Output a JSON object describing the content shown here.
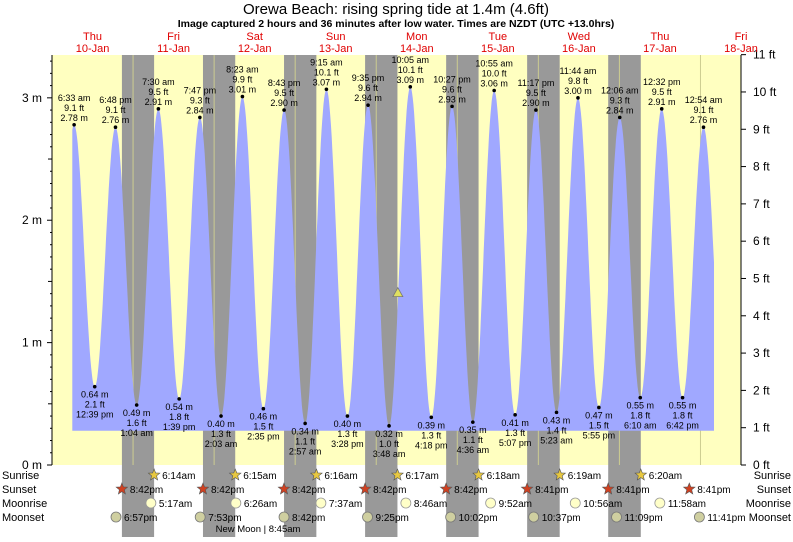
{
  "title": "Orewa Beach: rising  spring tide at 1.4m (4.6ft)",
  "subtitle": "Image captured 2 hours and 36 minutes after low water. Times are NZDT (UTC +13.0hrs)",
  "colors": {
    "day_bg": "#ffffc0",
    "night_bg": "#999999",
    "tide_fill": "#a0a8ff",
    "day_label": "#e00000",
    "marker": "#e0e060"
  },
  "chart_data": {
    "type": "area",
    "title": "Orewa Beach: rising  spring tide at 1.4m (4.6ft)",
    "y_left_label": "m",
    "y_right_label": "ft",
    "ylim_m": [
      0,
      3.35
    ],
    "y_ticks_m": [
      "0 m",
      "1 m",
      "2 m",
      "3 m"
    ],
    "y_ticks_ft": [
      "0 ft",
      "1 ft",
      "2 ft",
      "3 ft",
      "4 ft",
      "5 ft",
      "6 ft",
      "7 ft",
      "8 ft",
      "9 ft",
      "10 ft",
      "11 ft"
    ],
    "x_range_hours": [
      0,
      204
    ],
    "days": [
      {
        "name": "Thu",
        "date": "10-Jan"
      },
      {
        "name": "Fri",
        "date": "11-Jan"
      },
      {
        "name": "Sat",
        "date": "12-Jan"
      },
      {
        "name": "Sun",
        "date": "13-Jan"
      },
      {
        "name": "Mon",
        "date": "14-Jan"
      },
      {
        "name": "Tue",
        "date": "15-Jan"
      },
      {
        "name": "Wed",
        "date": "16-Jan"
      },
      {
        "name": "Thu",
        "date": "17-Jan"
      },
      {
        "name": "Fri",
        "date": "18-Jan"
      }
    ],
    "nights": [
      [
        20.7,
        30.23
      ],
      [
        44.7,
        54.25
      ],
      [
        68.7,
        78.27
      ],
      [
        92.7,
        102.28
      ],
      [
        116.7,
        126.3
      ],
      [
        140.68,
        150.32
      ],
      [
        164.68,
        174.33
      ]
    ],
    "tides": [
      {
        "t": 6.55,
        "h": 2.78,
        "time": "6:33 am",
        "ft": "9.1 ft",
        "m": "2.78 m",
        "type": "high"
      },
      {
        "t": 12.65,
        "h": 0.64,
        "time": "12:39 pm",
        "ft": "2.1 ft",
        "m": "0.64 m",
        "type": "low"
      },
      {
        "t": 18.8,
        "h": 2.76,
        "time": "6:48 pm",
        "ft": "9.1 ft",
        "m": "2.76 m",
        "type": "high"
      },
      {
        "t": 25.07,
        "h": 0.49,
        "time": "1:04 am",
        "ft": "1.6 ft",
        "m": "0.49 m",
        "type": "low"
      },
      {
        "t": 31.5,
        "h": 2.91,
        "time": "7:30 am",
        "ft": "9.5 ft",
        "m": "2.91 m",
        "type": "high"
      },
      {
        "t": 37.65,
        "h": 0.54,
        "time": "1:39 pm",
        "ft": "1.8 ft",
        "m": "0.54 m",
        "type": "low"
      },
      {
        "t": 43.78,
        "h": 2.84,
        "time": "7:47 pm",
        "ft": "9.3 ft",
        "m": "2.84 m",
        "type": "high"
      },
      {
        "t": 50.05,
        "h": 0.4,
        "time": "2:03 am",
        "ft": "1.3 ft",
        "m": "0.40 m",
        "type": "low"
      },
      {
        "t": 56.38,
        "h": 3.01,
        "time": "8:23 am",
        "ft": "9.9 ft",
        "m": "3.01 m",
        "type": "high"
      },
      {
        "t": 62.58,
        "h": 0.46,
        "time": "2:35 pm",
        "ft": "1.5 ft",
        "m": "0.46 m",
        "type": "low"
      },
      {
        "t": 68.72,
        "h": 2.9,
        "time": "8:43 pm",
        "ft": "9.5 ft",
        "m": "2.90 m",
        "type": "high"
      },
      {
        "t": 74.95,
        "h": 0.34,
        "time": "2:57 am",
        "ft": "1.1 ft",
        "m": "0.34 m",
        "type": "low"
      },
      {
        "t": 81.25,
        "h": 3.07,
        "time": "9:15 am",
        "ft": "10.1 ft",
        "m": "3.07 m",
        "type": "high"
      },
      {
        "t": 87.47,
        "h": 0.4,
        "time": "3:28 pm",
        "ft": "1.3 ft",
        "m": "0.40 m",
        "type": "low"
      },
      {
        "t": 93.58,
        "h": 2.94,
        "time": "9:35 pm",
        "ft": "9.6 ft",
        "m": "2.94 m",
        "type": "high"
      },
      {
        "t": 99.8,
        "h": 0.32,
        "time": "3:48 am",
        "ft": "1.0 ft",
        "m": "0.32 m",
        "type": "low"
      },
      {
        "t": 106.08,
        "h": 3.09,
        "time": "10:05 am",
        "ft": "10.1 ft",
        "m": "3.09 m",
        "type": "high"
      },
      {
        "t": 112.3,
        "h": 0.39,
        "time": "4:18 pm",
        "ft": "1.3 ft",
        "m": "0.39 m",
        "type": "low"
      },
      {
        "t": 118.45,
        "h": 2.93,
        "time": "10:27 pm",
        "ft": "9.6 ft",
        "m": "2.93 m",
        "type": "high"
      },
      {
        "t": 124.6,
        "h": 0.35,
        "time": "4:36 am",
        "ft": "1.1 ft",
        "m": "0.35 m",
        "type": "low"
      },
      {
        "t": 130.92,
        "h": 3.06,
        "time": "10:55 am",
        "ft": "10.0 ft",
        "m": "3.06 m",
        "type": "high"
      },
      {
        "t": 137.12,
        "h": 0.41,
        "time": "5:07 pm",
        "ft": "1.3 ft",
        "m": "0.41 m",
        "type": "low"
      },
      {
        "t": 143.28,
        "h": 2.9,
        "time": "11:17 pm",
        "ft": "9.5 ft",
        "m": "2.90 m",
        "type": "high"
      },
      {
        "t": 149.38,
        "h": 0.43,
        "time": "5:23 am",
        "ft": "1.4 ft",
        "m": "0.43 m",
        "type": "low"
      },
      {
        "t": 155.73,
        "h": 3.0,
        "time": "11:44 am",
        "ft": "9.8 ft",
        "m": "3.00 m",
        "type": "high"
      },
      {
        "t": 161.92,
        "h": 0.47,
        "time": "5:55 pm",
        "ft": "1.5 ft",
        "m": "0.47 m",
        "type": "low"
      },
      {
        "t": 168.1,
        "h": 2.84,
        "time": "12:06 am",
        "ft": "9.3 ft",
        "m": "2.84 m",
        "type": "high"
      },
      {
        "t": 174.17,
        "h": 0.55,
        "time": "6:10 am",
        "ft": "1.8 ft",
        "m": "0.55 m",
        "type": "low"
      },
      {
        "t": 180.53,
        "h": 2.91,
        "time": "12:32 pm",
        "ft": "9.5 ft",
        "m": "2.91 m",
        "type": "high"
      },
      {
        "t": 186.7,
        "h": 0.55,
        "time": "6:42 pm",
        "ft": "1.8 ft",
        "m": "0.55 m",
        "type": "low"
      },
      {
        "t": 192.9,
        "h": 2.76,
        "time": "12:54 am",
        "ft": "9.1 ft",
        "m": "2.76 m",
        "type": "high"
      }
    ],
    "data_start_hour": 6.0,
    "data_end_hour": 196.0,
    "current": {
      "t": 102.4,
      "h": 1.4
    }
  },
  "bottom_rows": {
    "labels": [
      "Sunrise",
      "Sunset",
      "Moonrise",
      "Moonset"
    ],
    "sunrise": [
      {
        "t": 30.23,
        "label": "6:14am"
      },
      {
        "t": 54.25,
        "label": "6:15am"
      },
      {
        "t": 78.27,
        "label": "6:16am"
      },
      {
        "t": 102.28,
        "label": "6:17am"
      },
      {
        "t": 126.3,
        "label": "6:18am"
      },
      {
        "t": 150.32,
        "label": "6:19am"
      },
      {
        "t": 174.33,
        "label": "6:20am"
      }
    ],
    "sunset": [
      {
        "t": 20.7,
        "label": "8:42pm"
      },
      {
        "t": 44.7,
        "label": "8:42pm"
      },
      {
        "t": 68.7,
        "label": "8:42pm"
      },
      {
        "t": 92.7,
        "label": "8:42pm"
      },
      {
        "t": 116.7,
        "label": "8:42pm"
      },
      {
        "t": 140.68,
        "label": "8:41pm"
      },
      {
        "t": 164.68,
        "label": "8:41pm"
      },
      {
        "t": 188.68,
        "label": "8:41pm"
      }
    ],
    "moonrise": [
      {
        "t": 29.28,
        "label": "5:17am"
      },
      {
        "t": 54.43,
        "label": "6:26am"
      },
      {
        "t": 79.62,
        "label": "7:37am"
      },
      {
        "t": 104.77,
        "label": "8:46am"
      },
      {
        "t": 129.87,
        "label": "9:52am"
      },
      {
        "t": 154.93,
        "label": "10:56am"
      },
      {
        "t": 179.97,
        "label": "11:58am"
      }
    ],
    "moonset": [
      {
        "t": 18.95,
        "label": "6:57pm"
      },
      {
        "t": 43.88,
        "label": "7:53pm"
      },
      {
        "t": 68.7,
        "label": "8:42pm"
      },
      {
        "t": 93.42,
        "label": "9:25pm"
      },
      {
        "t": 118.03,
        "label": "10:02pm"
      },
      {
        "t": 142.62,
        "label": "10:37pm"
      },
      {
        "t": 167.15,
        "label": "11:09pm"
      },
      {
        "t": 191.68,
        "label": "11:41pm"
      }
    ],
    "new_moon": "New Moon | 8:45am"
  }
}
